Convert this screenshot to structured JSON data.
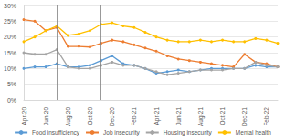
{
  "chart_data": {
    "type": "line",
    "categories": [
      "Apr-20",
      null,
      "Jun-20",
      null,
      "Aug-20",
      null,
      "Oct-20",
      null,
      "Dec-20",
      null,
      "Feb-21",
      null,
      "Apr-21",
      null,
      "Jun-21",
      null,
      "Aug-21",
      null,
      "Oct-21",
      null,
      "Dec-21",
      null,
      "Feb-22",
      null
    ],
    "series": [
      {
        "name": "Food insufficiency",
        "color": "#5b9bd5",
        "marker": "circle",
        "values": [
          10,
          10.5,
          10.5,
          11.5,
          10.5,
          10.5,
          11,
          12.5,
          14,
          11.5,
          11,
          10,
          8.5,
          9,
          9.5,
          9,
          9.5,
          10,
          10,
          10,
          10,
          11,
          10.5,
          10.5
        ]
      },
      {
        "name": "Job insecurity",
        "color": "#ed7d31",
        "marker": "circle",
        "values": [
          25.5,
          25,
          22,
          23,
          17,
          17,
          16.8,
          18,
          19,
          18.5,
          17.5,
          16.5,
          15.5,
          14,
          13,
          12.5,
          12,
          11.5,
          11,
          10.5,
          14.5,
          12,
          11.5,
          10.5
        ]
      },
      {
        "name": "Housing insecurity",
        "color": "#a5a5a5",
        "marker": "circle",
        "values": [
          15,
          14.5,
          14.5,
          16,
          10.5,
          10,
          10,
          11,
          12,
          11,
          11,
          10,
          9,
          8,
          8.5,
          9,
          9.5,
          9.5,
          9.5,
          10,
          10,
          12,
          11,
          10.5
        ]
      },
      {
        "name": "Mental health",
        "color": "#ffc000",
        "marker": "circle",
        "values": [
          18.5,
          20,
          22,
          23.5,
          20.5,
          21,
          22,
          24,
          24.5,
          23.5,
          23,
          21.5,
          20,
          19,
          18.5,
          18.5,
          19,
          18.5,
          19,
          18.5,
          18.5,
          19.5,
          19,
          18
        ]
      }
    ],
    "vlines": [
      3,
      7
    ],
    "ylim": [
      0,
      30
    ],
    "yticks": [
      {
        "value": 0,
        "label": "0%"
      },
      {
        "value": 5,
        "label": "5%"
      },
      {
        "value": 10,
        "label": "10%"
      },
      {
        "value": 15,
        "label": "15%"
      },
      {
        "value": 20,
        "label": "20%"
      },
      {
        "value": 25,
        "label": "25%"
      },
      {
        "value": 30,
        "label": "30%"
      }
    ],
    "grid": true,
    "legend": "bottom"
  }
}
